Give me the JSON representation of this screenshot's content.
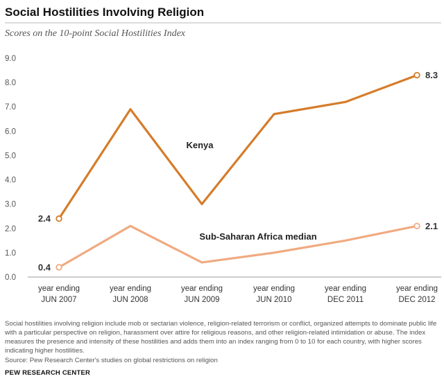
{
  "title": "Social Hostilities Involving Religion",
  "subtitle": "Scores on the 10-point Social Hostilities Index",
  "note": "Social hostilities involving religion include mob or sectarian violence, religion-related terrorism or conflict, organized attempts to dominate public life with a particular perspective on religion, harassment over attire for religious reasons, and other religion-related intimidation or abuse. The index measures the presence and intensity of these hostilities and adds them into an index ranging from 0 to 10 for each country, with higher scores indicating higher hostilities.",
  "source": "Source: Pew Research Center's studies on global restrictions on religion",
  "brand": "PEW RESEARCH CENTER",
  "chart_data": {
    "type": "line",
    "categories": [
      [
        "year ending",
        "JUN 2007"
      ],
      [
        "year ending",
        "JUN 2008"
      ],
      [
        "year ending",
        "JUN 2009"
      ],
      [
        "year ending",
        "JUN 2010"
      ],
      [
        "year ending",
        "DEC 2011"
      ],
      [
        "year ending",
        "DEC 2012"
      ]
    ],
    "yticks": [
      "0.0",
      "1.0",
      "2.0",
      "3.0",
      "4.0",
      "5.0",
      "6.0",
      "7.0",
      "8.0",
      "9.0"
    ],
    "ylim": [
      0,
      9
    ],
    "grid": false,
    "series": [
      {
        "name": "Kenya",
        "color": "#d57c2a",
        "values": [
          2.4,
          6.9,
          3.0,
          6.7,
          7.2,
          8.3
        ],
        "labels": [
          "2.4",
          "",
          "",
          "",
          "",
          "8.3"
        ]
      },
      {
        "name": "Sub-Saharan Africa median",
        "color": "#f0aa80",
        "values": [
          0.4,
          2.1,
          0.6,
          1.0,
          1.5,
          2.1
        ],
        "labels": [
          "0.4",
          "",
          "",
          "",
          "",
          "2.1"
        ]
      }
    ]
  }
}
